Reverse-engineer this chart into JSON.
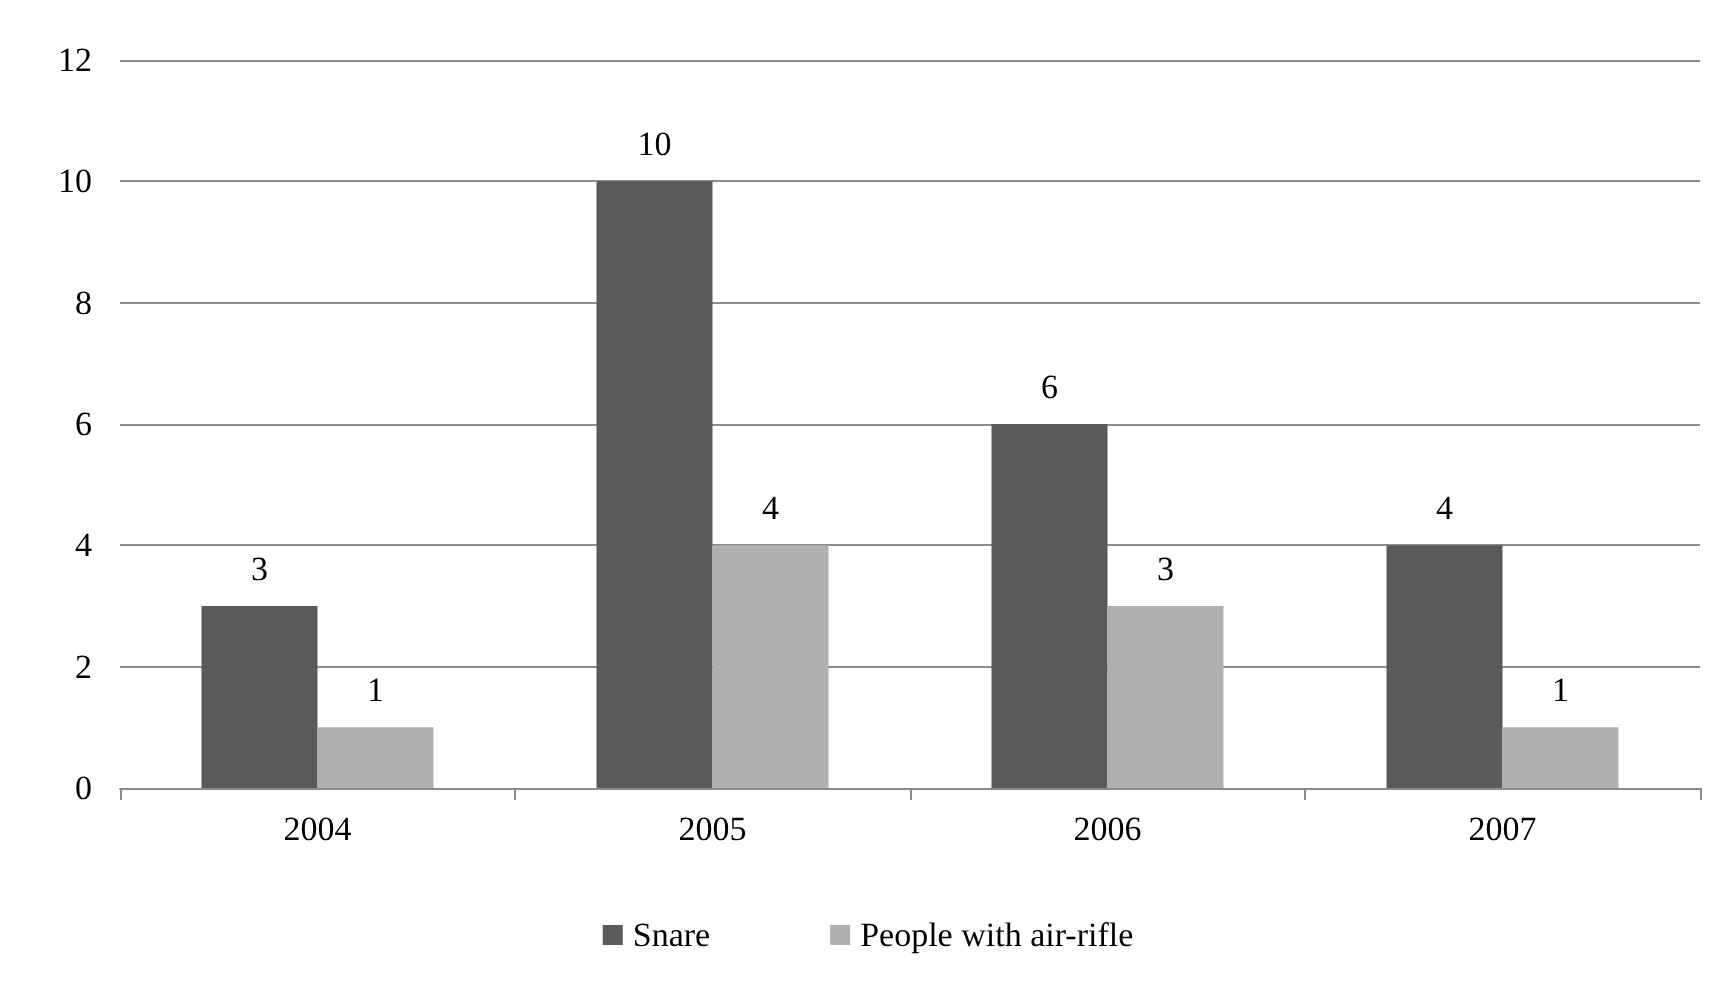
{
  "chart_data": {
    "type": "bar",
    "categories": [
      "2004",
      "2005",
      "2006",
      "2007"
    ],
    "series": [
      {
        "name": "Snare",
        "color": "#5a5a5a",
        "values": [
          3,
          10,
          6,
          4
        ]
      },
      {
        "name": "People with air-rifle",
        "color": "#b0b0b0",
        "values": [
          1,
          4,
          3,
          1
        ]
      }
    ],
    "ylim": [
      0,
      12
    ],
    "yticks": [
      0,
      2,
      4,
      6,
      8,
      10,
      12
    ],
    "grid": "y",
    "legend": "bottom",
    "data_labels": true
  }
}
